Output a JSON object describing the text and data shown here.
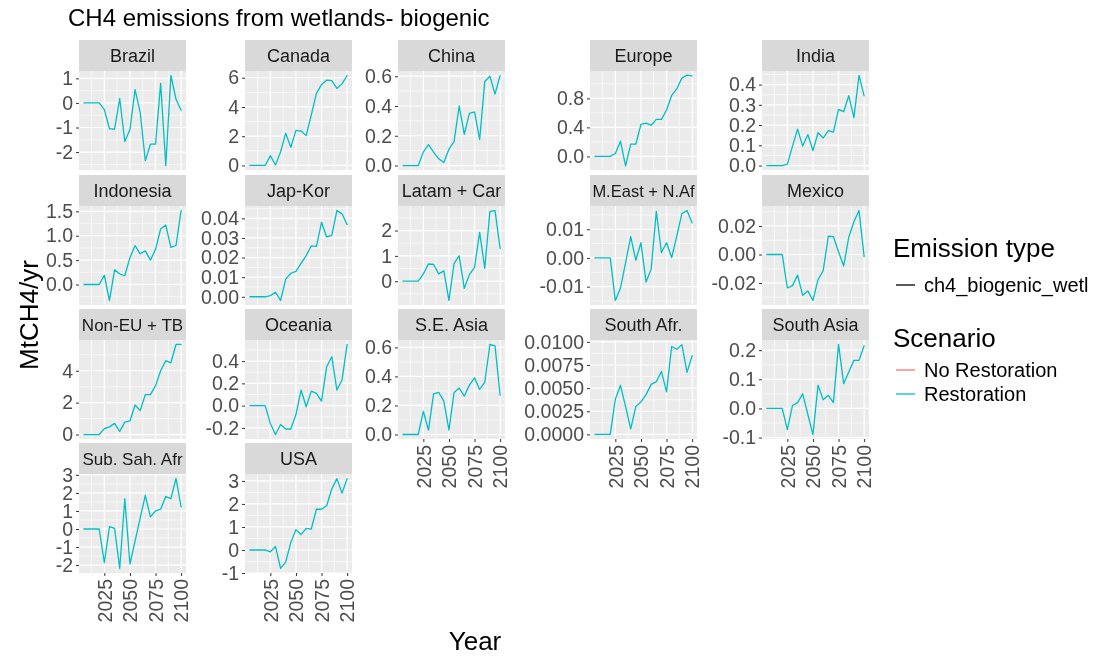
{
  "chart_data": [
    {
      "type": "line",
      "title": "Brazil",
      "x": [
        2005,
        2010,
        2015,
        2020,
        2025,
        2030,
        2035,
        2040,
        2045,
        2050,
        2055,
        2060,
        2065,
        2070,
        2075,
        2080,
        2085,
        2090,
        2095,
        2100
      ],
      "xlim": [
        2000.25,
        2104.75
      ],
      "xticks": [
        2025,
        2050,
        2075,
        2100
      ],
      "ylim": [
        -2.73,
        1.3
      ],
      "yticks": [
        -2,
        -1,
        0,
        1
      ],
      "grid": true,
      "tick_labels": "y",
      "ylabel": "MtCH4/yr",
      "legend": "right",
      "legend_title": "Scenario",
      "annotations": [
        "CH4 emissions from wetlands- biogenic",
        "Emission type",
        "ch4_biogenic_wetl"
      ],
      "series": [
        {
          "name": "No Restoration",
          "color": "#f8766d",
          "values": [
            null,
            null,
            null,
            null,
            null,
            null,
            null,
            null,
            null,
            null,
            null,
            null,
            null,
            null,
            null,
            null,
            null,
            null,
            null,
            null
          ]
        },
        {
          "name": "Restoration",
          "color": "#00bfc4",
          "values": [
            0,
            0,
            0,
            0,
            -0.27,
            -1.05,
            -1.07,
            0.18,
            -1.57,
            -1.08,
            0.54,
            -0.38,
            -2.35,
            -1.68,
            -1.68,
            0.8,
            -2.55,
            1.12,
            0.15,
            -0.3
          ]
        }
      ]
    },
    {
      "type": "line",
      "title": "Canada",
      "x": [
        2005,
        2010,
        2015,
        2020,
        2025,
        2030,
        2035,
        2040,
        2045,
        2050,
        2055,
        2060,
        2065,
        2070,
        2075,
        2080,
        2085,
        2090,
        2095,
        2100
      ],
      "xlim": [
        2000.25,
        2104.75
      ],
      "xticks": [
        2025,
        2050,
        2075,
        2100
      ],
      "ylim": [
        -0.31,
        6.46
      ],
      "yticks": [
        0,
        2,
        4,
        6
      ],
      "grid": true,
      "tick_labels": "y",
      "series": [
        {
          "color": "#00bfc4",
          "values": [
            0,
            0,
            0,
            0,
            0.67,
            0.03,
            0.93,
            2.2,
            1.24,
            2.4,
            2.35,
            2.04,
            3.46,
            4.93,
            5.53,
            5.84,
            5.8,
            5.27,
            5.58,
            6.15
          ]
        }
      ]
    },
    {
      "type": "line",
      "title": "China",
      "x": [
        2005,
        2010,
        2015,
        2020,
        2025,
        2030,
        2035,
        2040,
        2045,
        2050,
        2055,
        2060,
        2065,
        2070,
        2075,
        2080,
        2085,
        2090,
        2095,
        2100
      ],
      "xlim": [
        2000.25,
        2104.75
      ],
      "xticks": [
        2025,
        2050,
        2075,
        2100
      ],
      "ylim": [
        -0.03,
        0.635
      ],
      "yticks": [
        {
          "value": 0,
          "label": "0.0"
        },
        {
          "value": 0.2,
          "label": "0.2"
        },
        {
          "value": 0.4,
          "label": "0.4"
        },
        {
          "value": 0.6,
          "label": "0.6"
        }
      ],
      "grid": true,
      "tick_labels": "y",
      "series": [
        {
          "color": "#00bfc4",
          "values": [
            0,
            0,
            0,
            0,
            0.09,
            0.14,
            0.09,
            0.045,
            0.02,
            0.11,
            0.16,
            0.4,
            0.21,
            0.35,
            0.36,
            0.175,
            0.565,
            0.6,
            0.48,
            0.605
          ]
        }
      ]
    },
    {
      "type": "line",
      "title": "Europe",
      "x": [
        2005,
        2010,
        2015,
        2020,
        2025,
        2030,
        2035,
        2040,
        2045,
        2050,
        2055,
        2060,
        2065,
        2070,
        2075,
        2080,
        2085,
        2090,
        2095,
        2100
      ],
      "xlim": [
        2000.25,
        2104.75
      ],
      "xticks": [
        2025,
        2050,
        2075,
        2100
      ],
      "ylim": [
        -0.187,
        1.177
      ],
      "yticks": [
        {
          "value": 0,
          "label": "0.0"
        },
        {
          "value": 0.4,
          "label": "0.4"
        },
        {
          "value": 0.8,
          "label": "0.8"
        }
      ],
      "grid": true,
      "tick_labels": "y",
      "series": [
        {
          "color": "#00bfc4",
          "values": [
            0,
            0,
            0,
            0,
            0.04,
            0.21,
            -0.13,
            0.17,
            0.17,
            0.44,
            0.46,
            0.43,
            0.51,
            0.51,
            0.64,
            0.84,
            0.93,
            1.08,
            1.12,
            1.11
          ]
        }
      ]
    },
    {
      "type": "line",
      "title": "India",
      "x": [
        2005,
        2010,
        2015,
        2020,
        2025,
        2030,
        2035,
        2040,
        2045,
        2050,
        2055,
        2060,
        2065,
        2070,
        2075,
        2080,
        2085,
        2090,
        2095,
        2100
      ],
      "xlim": [
        2000.25,
        2104.75
      ],
      "xticks": [
        2025,
        2050,
        2075,
        2100
      ],
      "ylim": [
        -0.022,
        0.467
      ],
      "yticks": [
        {
          "value": 0,
          "label": "0.0"
        },
        {
          "value": 0.1,
          "label": "0.1"
        },
        {
          "value": 0.2,
          "label": "0.2"
        },
        {
          "value": 0.3,
          "label": "0.3"
        },
        {
          "value": 0.4,
          "label": "0.4"
        }
      ],
      "grid": true,
      "tick_labels": "y",
      "series": [
        {
          "color": "#00bfc4",
          "values": [
            0,
            0,
            0,
            0,
            0.007,
            0.095,
            0.18,
            0.096,
            0.153,
            0.074,
            0.162,
            0.136,
            0.172,
            0.165,
            0.277,
            0.266,
            0.345,
            0.237,
            0.445,
            0.344
          ]
        }
      ]
    },
    {
      "type": "line",
      "title": "Indonesia",
      "x": [
        2005,
        2010,
        2015,
        2020,
        2025,
        2030,
        2035,
        2040,
        2045,
        2050,
        2055,
        2060,
        2065,
        2070,
        2075,
        2080,
        2085,
        2090,
        2095,
        2100
      ],
      "xlim": [
        2000.25,
        2104.75
      ],
      "xticks": [
        2025,
        2050,
        2075,
        2100
      ],
      "ylim": [
        -0.42,
        1.61
      ],
      "yticks": [
        {
          "value": 0,
          "label": "0.0"
        },
        {
          "value": 0.5,
          "label": "0.5"
        },
        {
          "value": 1,
          "label": "1.0"
        },
        {
          "value": 1.5,
          "label": "1.5"
        }
      ],
      "grid": true,
      "tick_labels": "y",
      "series": [
        {
          "color": "#00bfc4",
          "values": [
            0,
            0,
            0,
            0,
            0.19,
            -0.33,
            0.3,
            0.22,
            0.18,
            0.55,
            0.8,
            0.63,
            0.69,
            0.5,
            0.72,
            1.14,
            1.22,
            0.76,
            0.8,
            1.52
          ]
        }
      ]
    },
    {
      "type": "line",
      "title": "Jap-Kor",
      "x": [
        2005,
        2010,
        2015,
        2020,
        2025,
        2030,
        2035,
        2040,
        2045,
        2050,
        2055,
        2060,
        2065,
        2070,
        2075,
        2080,
        2085,
        2090,
        2095,
        2100
      ],
      "xlim": [
        2000.25,
        2104.75
      ],
      "xticks": [
        2025,
        2050,
        2075,
        2100
      ],
      "ylim": [
        -0.0042,
        0.0463
      ],
      "yticks": [
        {
          "value": 0,
          "label": "0.00"
        },
        {
          "value": 0.01,
          "label": "0.01"
        },
        {
          "value": 0.02,
          "label": "0.02"
        },
        {
          "value": 0.03,
          "label": "0.03"
        },
        {
          "value": 0.04,
          "label": "0.04"
        }
      ],
      "grid": true,
      "tick_labels": "y",
      "series": [
        {
          "color": "#00bfc4",
          "values": [
            0,
            0,
            0,
            0,
            0.0006,
            0.0023,
            -0.0019,
            0.009,
            0.012,
            0.013,
            0.017,
            0.021,
            0.026,
            0.0257,
            0.038,
            0.0305,
            0.0313,
            0.044,
            0.0423,
            0.0368
          ]
        }
      ]
    },
    {
      "type": "line",
      "title": "Latam + Car",
      "x": [
        2005,
        2010,
        2015,
        2020,
        2025,
        2030,
        2035,
        2040,
        2045,
        2050,
        2055,
        2060,
        2065,
        2070,
        2075,
        2080,
        2085,
        2090,
        2095,
        2100
      ],
      "xlim": [
        2000.25,
        2104.75
      ],
      "xticks": [
        2025,
        2050,
        2075,
        2100
      ],
      "ylim": [
        -0.94,
        2.97
      ],
      "yticks": [
        0,
        1,
        2
      ],
      "grid": true,
      "tick_labels": "y",
      "series": [
        {
          "color": "#00bfc4",
          "values": [
            0,
            0,
            0,
            0,
            0.29,
            0.68,
            0.66,
            0.29,
            0.41,
            -0.76,
            0.7,
            1.0,
            -0.28,
            0.26,
            0.55,
            1.93,
            0.51,
            2.76,
            2.79,
            1.29
          ]
        }
      ]
    },
    {
      "type": "line",
      "title": "M.East + N.Af",
      "x": [
        2005,
        2010,
        2015,
        2020,
        2025,
        2030,
        2035,
        2040,
        2045,
        2050,
        2055,
        2060,
        2065,
        2070,
        2075,
        2080,
        2085,
        2090,
        2095,
        2100
      ],
      "xlim": [
        2000.25,
        2104.75
      ],
      "xticks": [
        2025,
        2050,
        2075,
        2100
      ],
      "ylim": [
        -0.0164,
        0.0181
      ],
      "yticks": [
        {
          "value": -0.01,
          "label": "-0.01"
        },
        {
          "value": 0,
          "label": "0.00"
        },
        {
          "value": 0.01,
          "label": "0.01"
        }
      ],
      "grid": true,
      "tick_labels": "y",
      "series": [
        {
          "color": "#00bfc4",
          "values": [
            0,
            0,
            0,
            0,
            -0.0148,
            -0.0105,
            -0.0017,
            0.0074,
            -0.0008,
            0.0053,
            -0.0084,
            -0.0039,
            0.0162,
            0.0019,
            0.0053,
            0.0001,
            0.0076,
            0.0155,
            0.0165,
            0.0122
          ]
        }
      ]
    },
    {
      "type": "line",
      "title": "Mexico",
      "x": [
        2005,
        2010,
        2015,
        2020,
        2025,
        2030,
        2035,
        2040,
        2045,
        2050,
        2055,
        2060,
        2065,
        2070,
        2075,
        2080,
        2085,
        2090,
        2095,
        2100
      ],
      "xlim": [
        2000.25,
        2104.75
      ],
      "xticks": [
        2025,
        2050,
        2075,
        2100
      ],
      "ylim": [
        -0.0354,
        0.034
      ],
      "yticks": [
        {
          "value": -0.02,
          "label": "-0.02"
        },
        {
          "value": 0,
          "label": "0.00"
        },
        {
          "value": 0.02,
          "label": "0.02"
        }
      ],
      "grid": true,
      "tick_labels": "y",
      "series": [
        {
          "color": "#00bfc4",
          "values": [
            0,
            0,
            0,
            0,
            -0.0235,
            -0.0218,
            -0.0145,
            -0.0286,
            -0.0255,
            -0.0322,
            -0.0175,
            -0.0114,
            0.0128,
            0.0126,
            0.0019,
            -0.008,
            0.0121,
            0.023,
            0.0308,
            -0.0015
          ]
        }
      ]
    },
    {
      "type": "line",
      "title": "Non-EU + TB",
      "x": [
        2005,
        2010,
        2015,
        2020,
        2025,
        2030,
        2035,
        2040,
        2045,
        2050,
        2055,
        2060,
        2065,
        2070,
        2075,
        2080,
        2085,
        2090,
        2095,
        2100
      ],
      "xlim": [
        2000.25,
        2104.75
      ],
      "xticks": [
        2025,
        2050,
        2075,
        2100
      ],
      "ylim": [
        -0.28,
        5.93
      ],
      "yticks": [
        0,
        2,
        4
      ],
      "grid": true,
      "tick_labels": "y",
      "series": [
        {
          "color": "#00bfc4",
          "values": [
            0,
            0,
            0,
            0,
            0.37,
            0.48,
            0.7,
            0.19,
            0.78,
            0.85,
            1.85,
            1.5,
            2.5,
            2.5,
            3.07,
            4.0,
            4.63,
            4.5,
            5.65,
            5.65
          ]
        }
      ]
    },
    {
      "type": "line",
      "title": "Oceania",
      "x": [
        2005,
        2010,
        2015,
        2020,
        2025,
        2030,
        2035,
        2040,
        2045,
        2050,
        2055,
        2060,
        2065,
        2070,
        2075,
        2080,
        2085,
        2090,
        2095,
        2100
      ],
      "xlim": [
        2000.25,
        2104.75
      ],
      "xticks": [
        2025,
        2050,
        2075,
        2100
      ],
      "ylim": [
        -0.3,
        0.59
      ],
      "yticks": [
        {
          "value": -0.2,
          "label": "-0.2"
        },
        {
          "value": 0,
          "label": "0.0"
        },
        {
          "value": 0.2,
          "label": "0.2"
        },
        {
          "value": 0.4,
          "label": "0.4"
        }
      ],
      "grid": true,
      "tick_labels": "y",
      "series": [
        {
          "color": "#00bfc4",
          "values": [
            0,
            0,
            0,
            0,
            -0.16,
            -0.26,
            -0.17,
            -0.21,
            -0.21,
            -0.08,
            0.14,
            -0.01,
            0.13,
            0.11,
            0.04,
            0.35,
            0.44,
            0.14,
            0.23,
            0.55
          ]
        }
      ]
    },
    {
      "type": "line",
      "title": "S.E. Asia",
      "xlabel": "Year",
      "x": [
        2005,
        2010,
        2015,
        2020,
        2025,
        2030,
        2035,
        2040,
        2045,
        2050,
        2055,
        2060,
        2065,
        2070,
        2075,
        2080,
        2085,
        2090,
        2095,
        2100
      ],
      "xlim": [
        2000.25,
        2104.75
      ],
      "xticks": [
        2025,
        2050,
        2075,
        2100
      ],
      "ylim": [
        -0.031,
        0.651
      ],
      "yticks": [
        {
          "value": 0,
          "label": "0.0"
        },
        {
          "value": 0.2,
          "label": "0.2"
        },
        {
          "value": 0.4,
          "label": "0.4"
        },
        {
          "value": 0.6,
          "label": "0.6"
        }
      ],
      "grid": true,
      "series": [
        {
          "color": "#00bfc4",
          "values": [
            0,
            0,
            0,
            0,
            0.16,
            0.03,
            0.28,
            0.29,
            0.23,
            0.03,
            0.29,
            0.32,
            0.265,
            0.34,
            0.39,
            0.31,
            0.36,
            0.62,
            0.61,
            0.27
          ]
        }
      ]
    },
    {
      "type": "line",
      "title": "South Afr.",
      "x": [
        2005,
        2010,
        2015,
        2020,
        2025,
        2030,
        2035,
        2040,
        2045,
        2050,
        2055,
        2060,
        2065,
        2070,
        2075,
        2080,
        2085,
        2090,
        2095,
        2100
      ],
      "xlim": [
        2000.25,
        2104.75
      ],
      "xticks": [
        2025,
        2050,
        2075,
        2100
      ],
      "ylim": [
        -0.0005,
        0.0102
      ],
      "yticks": [
        {
          "value": 0,
          "label": "0.0000"
        },
        {
          "value": 0.0025,
          "label": "0.0025"
        },
        {
          "value": 0.005,
          "label": "0.0050"
        },
        {
          "value": 0.0075,
          "label": "0.0075"
        },
        {
          "value": 0.01,
          "label": "0.0100"
        }
      ],
      "grid": true,
      "series": [
        {
          "color": "#00bfc4",
          "values": [
            0,
            0,
            0,
            0,
            0.0038,
            0.0053,
            0.003,
            0.0006,
            0.003,
            0.0035,
            0.0043,
            0.0054,
            0.0057,
            0.0068,
            0.0046,
            0.0095,
            0.0092,
            0.0097,
            0.0067,
            0.0085
          ]
        }
      ]
    },
    {
      "type": "line",
      "title": "South Asia",
      "x": [
        2005,
        2010,
        2015,
        2020,
        2025,
        2030,
        2035,
        2040,
        2045,
        2050,
        2055,
        2060,
        2065,
        2070,
        2075,
        2080,
        2085,
        2090,
        2095,
        2100
      ],
      "xlim": [
        2000.25,
        2104.75
      ],
      "xticks": [
        2025,
        2050,
        2075,
        2100
      ],
      "ylim": [
        -0.105,
        0.235
      ],
      "yticks": [
        {
          "value": -0.1,
          "label": "-0.1"
        },
        {
          "value": 0,
          "label": "0.0"
        },
        {
          "value": 0.1,
          "label": "0.1"
        },
        {
          "value": 0.2,
          "label": "0.2"
        }
      ],
      "grid": true,
      "series": [
        {
          "color": "#00bfc4",
          "values": [
            0,
            0,
            0,
            0,
            -0.073,
            0.01,
            0.02,
            0.05,
            -0.02,
            -0.09,
            0.08,
            0.03,
            0.045,
            0.02,
            0.22,
            0.085,
            0.125,
            0.165,
            0.165,
            0.215
          ]
        }
      ]
    },
    {
      "type": "line",
      "title": "Sub. Sah. Afr",
      "x": [
        2005,
        2010,
        2015,
        2020,
        2025,
        2030,
        2035,
        2040,
        2045,
        2050,
        2055,
        2060,
        2065,
        2070,
        2075,
        2080,
        2085,
        2090,
        2095,
        2100
      ],
      "xlim": [
        2000.25,
        2104.75
      ],
      "xticks": [
        2025,
        2050,
        2075,
        2100
      ],
      "ylim": [
        -2.44,
        3.05
      ],
      "yticks": [
        -2,
        -1,
        0,
        1,
        2,
        3
      ],
      "grid": true,
      "series": [
        {
          "color": "#00bfc4",
          "values": [
            0,
            0,
            0,
            0,
            -1.87,
            0.13,
            0.04,
            -2.19,
            1.68,
            -1.94,
            -0.67,
            0.6,
            1.87,
            0.67,
            1.0,
            1.1,
            1.8,
            1.68,
            2.8,
            1.22
          ]
        }
      ]
    },
    {
      "type": "line",
      "title": "USA",
      "x": [
        2005,
        2010,
        2015,
        2020,
        2025,
        2030,
        2035,
        2040,
        2045,
        2050,
        2055,
        2060,
        2065,
        2070,
        2075,
        2080,
        2085,
        2090,
        2095,
        2100
      ],
      "xlim": [
        2000.25,
        2104.75
      ],
      "xticks": [
        2025,
        2050,
        2075,
        2100
      ],
      "ylim": [
        -1.0,
        3.3
      ],
      "yticks": [
        -1,
        0,
        1,
        2,
        3
      ],
      "grid": true,
      "series": [
        {
          "color": "#00bfc4",
          "values": [
            0,
            0,
            0,
            0,
            -0.08,
            0.15,
            -0.8,
            -0.53,
            0.33,
            0.88,
            0.67,
            0.94,
            0.91,
            1.77,
            1.77,
            1.92,
            2.65,
            3.1,
            2.47,
            3.1
          ]
        }
      ]
    }
  ]
}
